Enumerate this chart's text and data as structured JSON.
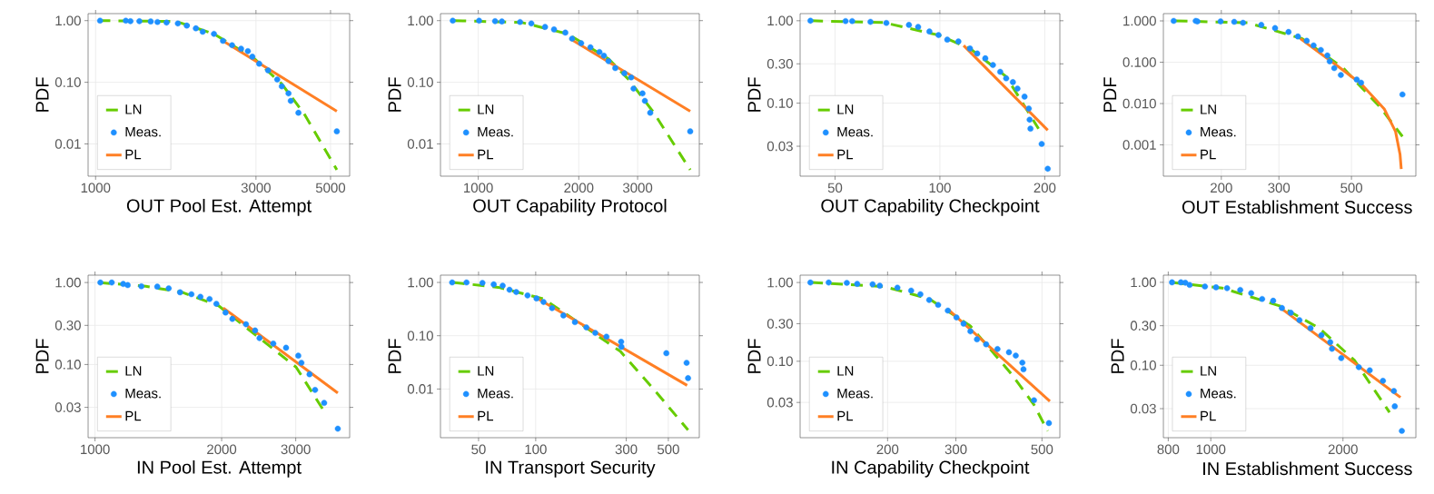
{
  "chart_data": [
    {
      "type": "line",
      "xlabel": "OUT Pool Est. Attempt",
      "ylabel": "PDF",
      "log": "xy",
      "grid": true,
      "legend": "bottom left",
      "xlim": [
        950,
        5700
      ],
      "ylim": [
        0.003,
        1.3
      ],
      "xticks": [
        1000,
        3000,
        5000
      ],
      "yticks": [
        {
          "value": 1,
          "label": "1.00"
        },
        {
          "value": 0.1,
          "label": "0.10"
        },
        {
          "value": 0.01,
          "label": "0.01"
        }
      ],
      "series": [
        {
          "name": "LN",
          "line_style": "dashed",
          "color": "#66cc00",
          "x": [
            1020,
            1740,
            2250,
            2972,
            3580,
            4170,
            5220
          ],
          "values": [
            1.0,
            0.97,
            0.61,
            0.24,
            0.094,
            0.031,
            0.0038
          ]
        },
        {
          "name": "Meas.",
          "type": "scatter",
          "color": "#1e90ff",
          "x": [
            1031,
            1230,
            1270,
            1350,
            1459,
            1528,
            1626,
            1757,
            1868,
            1988,
            2083,
            2250,
            2393,
            2547,
            2709,
            2838,
            2927,
            3067,
            3260,
            3470,
            3580,
            3750,
            3807,
            4013,
            5220
          ],
          "values": [
            1.0,
            1.0,
            0.98,
            0.98,
            0.97,
            0.95,
            0.93,
            0.9,
            0.83,
            0.75,
            0.66,
            0.61,
            0.47,
            0.4,
            0.35,
            0.32,
            0.26,
            0.2,
            0.156,
            0.111,
            0.086,
            0.066,
            0.05,
            0.032,
            0.016
          ]
        },
        {
          "name": "PL",
          "line_style": "solid",
          "color": "#ff7f24",
          "x": [
            2393,
            5220
          ],
          "values": [
            0.47,
            0.034
          ]
        }
      ]
    },
    {
      "type": "line",
      "xlabel": "OUT Capability Protocol",
      "ylabel": "PDF",
      "log": "xy",
      "grid": true,
      "legend": "bottom left",
      "xlim": [
        771,
        4590
      ],
      "ylim": [
        0.003,
        1.3
      ],
      "xticks": [
        1000,
        2000,
        3000
      ],
      "yticks": [
        {
          "value": 1,
          "label": "1.00"
        },
        {
          "value": 0.1,
          "label": "0.10"
        },
        {
          "value": 0.01,
          "label": "0.01"
        }
      ],
      "series": [
        {
          "name": "LN",
          "line_style": "dashed",
          "color": "#66cc00",
          "x": [
            848,
            1354,
            1852,
            2455,
            2826,
            3355,
            4311
          ],
          "values": [
            1.0,
            0.93,
            0.61,
            0.24,
            0.11,
            0.032,
            0.0038
          ]
        },
        {
          "name": "Meas.",
          "type": "scatter",
          "color": "#1e90ff",
          "x": [
            839,
            1006,
            1123,
            1177,
            1334,
            1442,
            1585,
            1686,
            1823,
            1910,
            2033,
            2167,
            2306,
            2378,
            2455,
            2572,
            2739,
            2870,
            2917,
            3103,
            3154,
            3273,
            4311
          ],
          "values": [
            1.0,
            1.0,
            0.98,
            0.97,
            0.95,
            0.9,
            0.79,
            0.72,
            0.64,
            0.51,
            0.43,
            0.37,
            0.31,
            0.27,
            0.22,
            0.17,
            0.14,
            0.12,
            0.079,
            0.066,
            0.05,
            0.032,
            0.016
          ]
        },
        {
          "name": "PL",
          "line_style": "solid",
          "color": "#ff7f24",
          "x": [
            1881,
            4311
          ],
          "values": [
            0.51,
            0.034
          ]
        }
      ]
    },
    {
      "type": "line",
      "xlabel": "OUT Capability Checkpoint",
      "ylabel": "PDF",
      "log": "xy",
      "grid": true,
      "legend": "bottom left",
      "xlim": [
        39.7,
        221
      ],
      "ylim": [
        0.013,
        1.22
      ],
      "xticks": [
        50,
        100,
        200
      ],
      "yticks": [
        {
          "value": 1,
          "label": "1.00"
        },
        {
          "value": 0.3,
          "label": "0.30"
        },
        {
          "value": 0.1,
          "label": "0.10"
        },
        {
          "value": 0.03,
          "label": "0.03"
        }
      ],
      "series": [
        {
          "name": "LN",
          "line_style": "dashed",
          "color": "#66cc00",
          "x": [
            42.7,
            69.1,
            99.1,
            122,
            155,
            192
          ],
          "values": [
            1.0,
            0.95,
            0.67,
            0.46,
            0.21,
            0.049
          ]
        },
        {
          "name": "Meas.",
          "type": "scatter",
          "color": "#1e90ff",
          "x": [
            42.5,
            53.6,
            56.0,
            63.2,
            70.2,
            81.5,
            86.6,
            93.3,
            99.1,
            105,
            113,
            122,
            128,
            135,
            142,
            149,
            155,
            162,
            167,
            175,
            180,
            181,
            182,
            196,
            204
          ],
          "values": [
            1.0,
            0.99,
            0.99,
            0.97,
            0.94,
            0.89,
            0.84,
            0.74,
            0.67,
            0.59,
            0.56,
            0.46,
            0.4,
            0.35,
            0.29,
            0.24,
            0.2,
            0.18,
            0.15,
            0.12,
            0.086,
            0.063,
            0.049,
            0.032,
            0.016
          ]
        },
        {
          "name": "PL",
          "line_style": "solid",
          "color": "#ff7f24",
          "x": [
            117,
            204
          ],
          "values": [
            0.5,
            0.047
          ]
        }
      ]
    },
    {
      "type": "line",
      "xlabel": "OUT Establishment Success",
      "ylabel": "PDF",
      "log": "xy",
      "grid": true,
      "legend": "bottom left",
      "xlim": [
        133,
        787
      ],
      "ylim": [
        0.000175,
        1.5
      ],
      "xticks": [
        200,
        300,
        500
      ],
      "yticks": [
        {
          "value": 1,
          "label": "1.000"
        },
        {
          "value": 0.1,
          "label": "0.100"
        },
        {
          "value": 0.01,
          "label": "0.010"
        },
        {
          "value": 0.001,
          "label": "0.001"
        }
      ],
      "series": [
        {
          "name": "LN",
          "line_style": "dashed",
          "color": "#66cc00",
          "x": [
            145,
            241,
            354,
            472,
            610,
            716
          ],
          "values": [
            1.0,
            0.9,
            0.37,
            0.072,
            0.0084,
            0.0016
          ]
        },
        {
          "name": "Meas.",
          "type": "scatter",
          "color": "#1e90ff",
          "x": [
            143,
            167,
            169,
            199,
            219,
            233,
            265,
            292,
            321,
            343,
            365,
            383,
            403,
            422,
            429,
            443,
            464,
            519,
            535,
            716
          ],
          "values": [
            1.0,
            1.0,
            0.97,
            0.97,
            0.95,
            0.9,
            0.8,
            0.67,
            0.54,
            0.42,
            0.33,
            0.255,
            0.198,
            0.146,
            0.105,
            0.072,
            0.049,
            0.038,
            0.032,
            0.0166
          ]
        },
        {
          "name": "PL",
          "line_style": "solid",
          "color": "#ff7f24",
          "x": [
            349,
            443,
            535,
            630,
            682,
            704,
            710
          ],
          "values": [
            0.37,
            0.093,
            0.03,
            0.0074,
            0.0021,
            0.00059,
            0.00026
          ]
        }
      ]
    },
    {
      "type": "line",
      "xlabel": "IN Pool Est. Attempt",
      "ylabel": "PDF",
      "log": "xy",
      "grid": true,
      "legend": "bottom left",
      "xlim": [
        963,
        4030
      ],
      "ylim": [
        0.0128,
        1.23
      ],
      "xticks": [
        1000,
        2000,
        3000
      ],
      "yticks": [
        {
          "value": 1,
          "label": "1.00"
        },
        {
          "value": 0.3,
          "label": "0.30"
        },
        {
          "value": 0.1,
          "label": "0.10"
        },
        {
          "value": 0.03,
          "label": "0.03"
        }
      ],
      "series": [
        {
          "name": "LN",
          "line_style": "dashed",
          "color": "#66cc00",
          "x": [
            1017,
            1321,
            1612,
            1968,
            2461,
            3005,
            3487
          ],
          "values": [
            1.0,
            0.9,
            0.76,
            0.52,
            0.21,
            0.093,
            0.028
          ]
        },
        {
          "name": "Meas.",
          "type": "scatter",
          "color": "#1e90ff",
          "x": [
            1030,
            1096,
            1167,
            1196,
            1289,
            1406,
            1497,
            1593,
            1695,
            1781,
            1872,
            1943,
            2043,
            2121,
            2285,
            2402,
            2461,
            2653,
            2845,
            3042,
            3095,
            3236,
            3335,
            3505,
            3777
          ],
          "values": [
            1.0,
            1.0,
            0.96,
            0.93,
            0.9,
            0.89,
            0.85,
            0.76,
            0.72,
            0.67,
            0.63,
            0.55,
            0.43,
            0.36,
            0.31,
            0.26,
            0.21,
            0.18,
            0.16,
            0.128,
            0.105,
            0.076,
            0.049,
            0.034,
            0.0165
          ]
        },
        {
          "name": "PL",
          "line_style": "solid",
          "color": "#ff7f24",
          "x": [
            2018,
            3777
          ],
          "values": [
            0.49,
            0.045
          ]
        }
      ]
    },
    {
      "type": "line",
      "xlabel": "IN Transport Security",
      "ylabel": "PDF",
      "log": "xy",
      "grid": true,
      "legend": "bottom left",
      "xlim": [
        31.5,
        728
      ],
      "ylim": [
        0.00122,
        1.37
      ],
      "xticks": [
        50,
        100,
        300,
        500
      ],
      "yticks": [
        {
          "value": 1,
          "label": "1.00"
        },
        {
          "value": 0.1,
          "label": "0.10"
        },
        {
          "value": 0.01,
          "label": "0.01"
        }
      ],
      "series": [
        {
          "name": "LN",
          "line_style": "dashed",
          "color": "#66cc00",
          "x": [
            36.6,
            63.5,
            110,
            180,
            279,
            432,
            635
          ],
          "values": [
            1.0,
            0.81,
            0.49,
            0.15,
            0.051,
            0.0087,
            0.0017
          ]
        },
        {
          "name": "Meas.",
          "type": "scatter",
          "color": "#1e90ff",
          "x": [
            36.3,
            43.2,
            52.4,
            60.1,
            67.0,
            72.8,
            79.0,
            90.6,
            101,
            110,
            122,
            140,
            161,
            185,
            206,
            236,
            282,
            283,
            488,
            624,
            635
          ],
          "values": [
            1.0,
            1.0,
            0.98,
            0.92,
            0.87,
            0.73,
            0.66,
            0.57,
            0.5,
            0.43,
            0.33,
            0.24,
            0.18,
            0.143,
            0.113,
            0.096,
            0.077,
            0.062,
            0.047,
            0.031,
            0.016
          ]
        },
        {
          "name": "PL",
          "line_style": "solid",
          "color": "#ff7f24",
          "x": [
            98.4,
            628
          ],
          "values": [
            0.54,
            0.0117
          ]
        }
      ]
    },
    {
      "type": "line",
      "xlabel": "IN Capability Checkpoint",
      "ylabel": "PDF",
      "log": "xy",
      "grid": true,
      "legend": "bottom left",
      "xlim": [
        119,
        556
      ],
      "ylim": [
        0.0107,
        1.24
      ],
      "xticks": [
        200,
        300,
        500
      ],
      "yticks": [
        {
          "value": 1,
          "label": "1.00"
        },
        {
          "value": 0.3,
          "label": "0.30"
        },
        {
          "value": 0.1,
          "label": "0.10"
        },
        {
          "value": 0.03,
          "label": "0.03"
        }
      ],
      "series": [
        {
          "name": "LN",
          "line_style": "dashed",
          "color": "#66cc00",
          "x": [
            127,
            196,
            256,
            327,
            417,
            477,
            517
          ],
          "values": [
            1.0,
            0.89,
            0.62,
            0.28,
            0.069,
            0.028,
            0.013
          ]
        },
        {
          "name": "Meas.",
          "type": "scatter",
          "color": "#1e90ff",
          "x": [
            126.5,
            141,
            157,
            167,
            183,
            191,
            212,
            230,
            243,
            256,
            270,
            286,
            301,
            314,
            327,
            340,
            359,
            384,
            411,
            428,
            445,
            448,
            477,
            521
          ],
          "values": [
            1.0,
            1.0,
            0.99,
            0.96,
            0.95,
            0.91,
            0.86,
            0.79,
            0.71,
            0.6,
            0.52,
            0.44,
            0.36,
            0.3,
            0.24,
            0.19,
            0.164,
            0.143,
            0.13,
            0.118,
            0.096,
            0.079,
            0.032,
            0.0164
          ]
        },
        {
          "name": "PL",
          "line_style": "solid",
          "color": "#ff7f24",
          "x": [
            286,
            524
          ],
          "values": [
            0.46,
            0.031
          ]
        }
      ]
    },
    {
      "type": "line",
      "xlabel": "IN Establishment Success",
      "ylabel": "PDF",
      "log": "xy",
      "grid": true,
      "legend": "bottom left",
      "xlim": [
        780,
        2931
      ],
      "ylim": [
        0.0134,
        1.22
      ],
      "xticks": [
        800,
        1000,
        2000
      ],
      "yticks": [
        {
          "value": 1,
          "label": "1.00"
        },
        {
          "value": 0.3,
          "label": "0.30"
        },
        {
          "value": 0.1,
          "label": "0.10"
        },
        {
          "value": 0.03,
          "label": "0.03"
        }
      ],
      "series": [
        {
          "name": "LN",
          "line_style": "dashed",
          "color": "#66cc00",
          "x": [
            816,
            1064,
            1435,
            1766,
            2123,
            2553
          ],
          "values": [
            1.0,
            0.85,
            0.52,
            0.28,
            0.115,
            0.027
          ]
        },
        {
          "name": "Meas.",
          "type": "scatter",
          "color": "#1e90ff",
          "x": [
            816,
            855,
            875,
            895,
            970,
            1028,
            1089,
            1167,
            1236,
            1309,
            1387,
            1452,
            1521,
            1592,
            1687,
            1786,
            1871,
            1888,
            1982,
            2173,
            2301,
            2466,
            2612,
            2624,
            2723
          ],
          "values": [
            1.0,
            1.0,
            0.99,
            0.93,
            0.89,
            0.87,
            0.85,
            0.81,
            0.74,
            0.63,
            0.6,
            0.49,
            0.43,
            0.35,
            0.28,
            0.23,
            0.19,
            0.158,
            0.122,
            0.095,
            0.087,
            0.065,
            0.049,
            0.032,
            0.0162
          ]
        },
        {
          "name": "PL",
          "line_style": "solid",
          "color": "#ff7f24",
          "x": [
            1435,
            2704
          ],
          "values": [
            0.5,
            0.041
          ]
        }
      ]
    }
  ]
}
